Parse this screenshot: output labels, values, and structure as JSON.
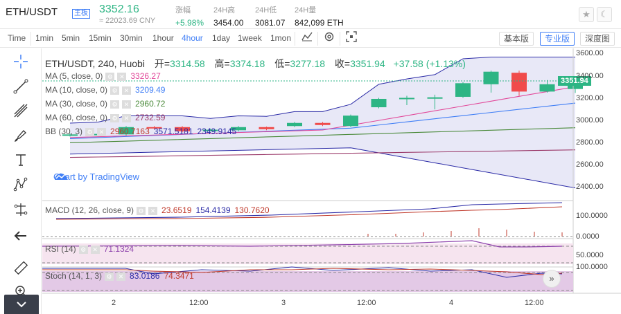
{
  "header": {
    "pair": "ETH/USDT",
    "badge": "主板",
    "price": "3352.16",
    "cny": "≈ 22023.69 CNY",
    "stats": [
      {
        "key": "涨幅",
        "value": "+5.98%",
        "up": true
      },
      {
        "key": "24H高",
        "value": "3454.00",
        "up": false
      },
      {
        "key": "24H低",
        "value": "3081.07",
        "up": false
      },
      {
        "key": "24H量",
        "value": "842,099 ETH",
        "up": false
      }
    ],
    "star_icon": "star-icon",
    "theme_icon": "moon-icon"
  },
  "toolbar": {
    "intervals": [
      "Time",
      "1min",
      "5min",
      "15min",
      "30min",
      "1hour",
      "4hour",
      "1day",
      "1week",
      "1mon"
    ],
    "active_interval": "4hour",
    "icons": [
      "indicator-icon",
      "settings-icon",
      "fullscreen-icon"
    ],
    "views": [
      "基本版",
      "专业版",
      "深度图"
    ],
    "active_view": "专业版"
  },
  "sidebar": {
    "tools": [
      "crosshair-icon",
      "trendline-icon",
      "pitchfork-icon",
      "brush-icon",
      "text-icon",
      "pattern-icon",
      "measure-icon",
      "back-arrow-icon",
      "ruler-icon",
      "zoom-icon"
    ],
    "collapse_icon": "chevron-down-icon"
  },
  "chart": {
    "title": "ETH/USDT, 240, Huobi",
    "ohlc": {
      "open_label": "开=",
      "open": "3314.58",
      "high_label": "高=",
      "high": "3374.18",
      "low_label": "低=",
      "low": "3277.18",
      "close_label": "收=",
      "close": "3351.94",
      "change": "+37.58 (+1.13%)"
    },
    "legends": [
      {
        "label": "MA (5, close, 0)",
        "values": [
          "3326.27"
        ],
        "colors": [
          "#e2499a"
        ]
      },
      {
        "label": "MA (10, close, 0)",
        "values": [
          "3209.49"
        ],
        "colors": [
          "#3f7ef6"
        ]
      },
      {
        "label": "MA (30, close, 0)",
        "values": [
          "2960.72"
        ],
        "colors": [
          "#4a8a3a"
        ]
      },
      {
        "label": "MA (60, close, 0)",
        "values": [
          "2732.59"
        ],
        "colors": [
          "#9b3a6a"
        ]
      },
      {
        "label": "BB (30, 3)",
        "values": [
          "2960.7163",
          "3571.5181",
          "2349.9145"
        ],
        "colors": [
          "#c0392b",
          "#2a2aa6",
          "#2a2aa6"
        ]
      }
    ],
    "tv_badge": "Chart by TradingView",
    "last_price_tag": "3351.94",
    "price_axis": [
      "3600.00",
      "3400.00",
      "3200.00",
      "3000.00",
      "2800.00",
      "2600.00",
      "2400.00"
    ],
    "macd": {
      "label": "MACD (12, 26, close, 9)",
      "values": [
        "23.6519",
        "154.4139",
        "130.7620"
      ],
      "colors": [
        "#c0392b",
        "#2a2aa6",
        "#c0392b"
      ],
      "axis": [
        "100.0000",
        "0.0000"
      ]
    },
    "rsi": {
      "label": "RSI (14)",
      "value": "71.1324",
      "axis": [
        "50.0000"
      ]
    },
    "stoch": {
      "label": "Stoch (14, 1, 3)",
      "values": [
        "83.0186",
        "74.3471"
      ],
      "colors": [
        "#2a2aa6",
        "#c0392b"
      ],
      "axis": [
        "100.0000"
      ]
    },
    "time_axis": [
      "2",
      "12:00",
      "3",
      "12:00",
      "4",
      "12:00"
    ],
    "scroll_icon": "double-chevron-right-icon"
  },
  "chart_data": {
    "type": "candlestick",
    "title": "ETH/USDT, 240, Huobi",
    "candles": [
      {
        "o": 2870,
        "c": 2880,
        "h": 2890,
        "l": 2860
      },
      {
        "o": 2880,
        "c": 2885,
        "h": 2900,
        "l": 2870
      },
      {
        "o": 2880,
        "c": 2950,
        "h": 2960,
        "l": 2870
      },
      {
        "o": 2950,
        "c": 2945,
        "h": 2960,
        "l": 2930
      },
      {
        "o": 2950,
        "c": 2910,
        "h": 2960,
        "l": 2900
      },
      {
        "o": 2920,
        "c": 2925,
        "h": 2935,
        "l": 2910
      },
      {
        "o": 2920,
        "c": 2950,
        "h": 2960,
        "l": 2910
      },
      {
        "o": 2950,
        "c": 2930,
        "h": 2955,
        "l": 2920
      },
      {
        "o": 2960,
        "c": 2990,
        "h": 3000,
        "l": 2950
      },
      {
        "o": 2990,
        "c": 2970,
        "h": 3000,
        "l": 2960
      },
      {
        "o": 2960,
        "c": 3060,
        "h": 3070,
        "l": 2950
      },
      {
        "o": 3140,
        "c": 3220,
        "h": 3230,
        "l": 3130
      },
      {
        "o": 3220,
        "c": 3230,
        "h": 3250,
        "l": 3160
      },
      {
        "o": 3230,
        "c": 3235,
        "h": 3260,
        "l": 3120
      },
      {
        "o": 3240,
        "c": 3370,
        "h": 3380,
        "l": 3230
      },
      {
        "o": 3360,
        "c": 3480,
        "h": 3490,
        "l": 3280
      },
      {
        "o": 3470,
        "c": 3290,
        "h": 3490,
        "l": 3250
      },
      {
        "o": 3290,
        "c": 3360,
        "h": 3400,
        "l": 3280
      },
      {
        "o": 3314.58,
        "c": 3351.94,
        "h": 3374.18,
        "l": 3277.18
      }
    ],
    "ylim": [
      2300,
      3650
    ]
  }
}
